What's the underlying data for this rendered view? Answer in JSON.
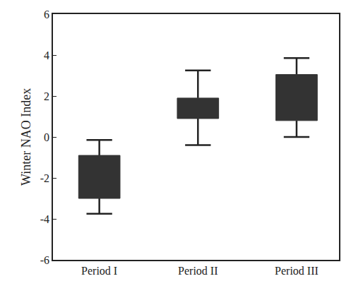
{
  "chart_data": {
    "type": "box",
    "ylabel": "Winter NAO Index",
    "categories": [
      "Period I",
      "Period II",
      "Period III"
    ],
    "boxes": [
      {
        "low": -3.75,
        "q1": -3.0,
        "q3": -0.9,
        "high": -0.15
      },
      {
        "low": -0.4,
        "q1": 0.9,
        "q3": 1.9,
        "high": 3.25
      },
      {
        "low": 0.0,
        "q1": 0.8,
        "q3": 3.05,
        "high": 3.85
      }
    ],
    "color": "#333333",
    "ylim": [
      -6,
      6
    ],
    "yticks": [
      -6,
      -4,
      -2,
      0,
      2,
      4,
      6
    ],
    "grid": false
  }
}
